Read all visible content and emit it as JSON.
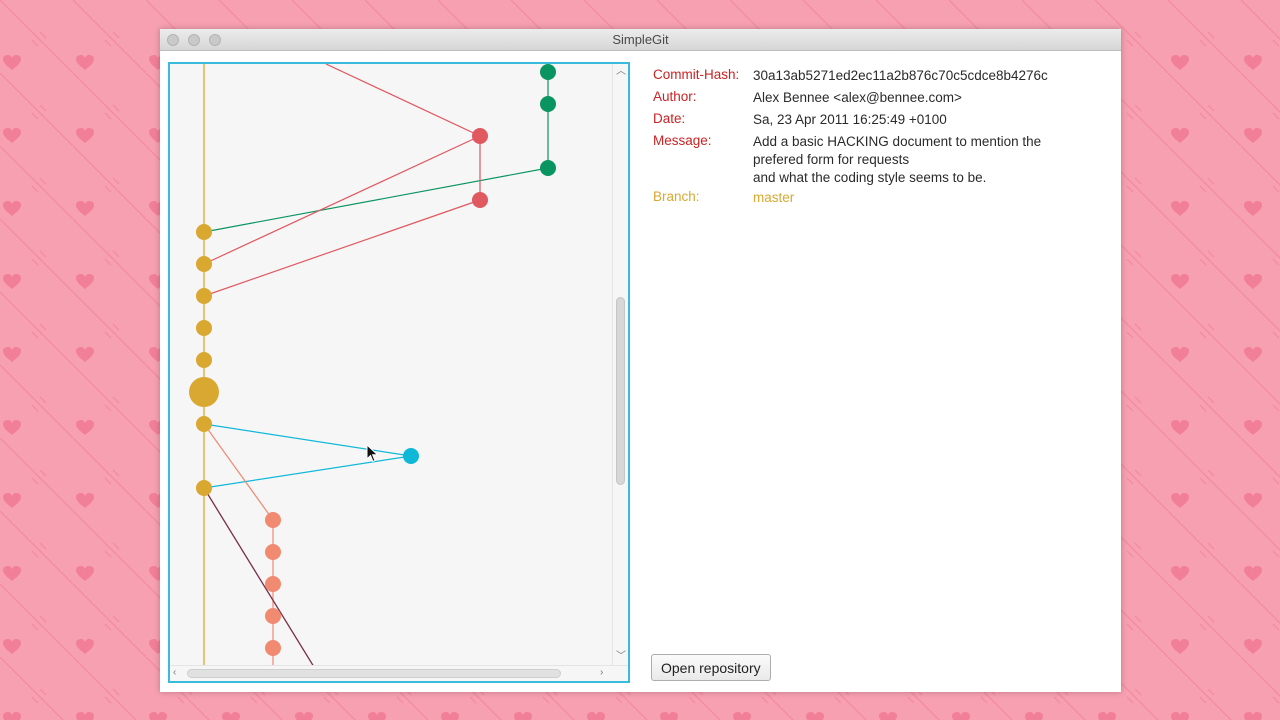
{
  "window": {
    "title": "SimpleGit"
  },
  "colors": {
    "background": "#f7a0b1",
    "graph_border": "#3bbbdb",
    "label_red": "#cc2222",
    "branch_gold": "#d9a830",
    "branch_trunk": "#d9a830",
    "branch_green": "#0a9460",
    "branch_red": "#e05860",
    "branch_cyan": "#10b8d8",
    "branch_salmon": "#f08a70",
    "branch_plum": "#7a2e4a"
  },
  "commit_details": {
    "hash_label": "Commit-Hash:",
    "hash_value": "30a13ab5271ed2ec11a2b876c70c5cdce8b4276c",
    "author_label": "Author:",
    "author_value": "Alex Bennee <alex@bennee.com>",
    "date_label": "Date:",
    "date_value": "Sa, 23 Apr 2011 16:25:49 +0100",
    "message_label": "Message:",
    "message_lines": [
      "Add a basic HACKING document to mention the",
      "prefered form for requests",
      "and what the coding style seems to be."
    ],
    "branch_label": "Branch:",
    "branch_value": "master"
  },
  "buttons": {
    "open_repository": "Open repository"
  },
  "icons": {
    "close": "traffic-light-close-icon",
    "minimize": "traffic-light-minimize-icon",
    "zoom": "traffic-light-zoom-icon",
    "cursor": "mouse-pointer-icon",
    "background": "heart-and-arrow-pattern"
  }
}
